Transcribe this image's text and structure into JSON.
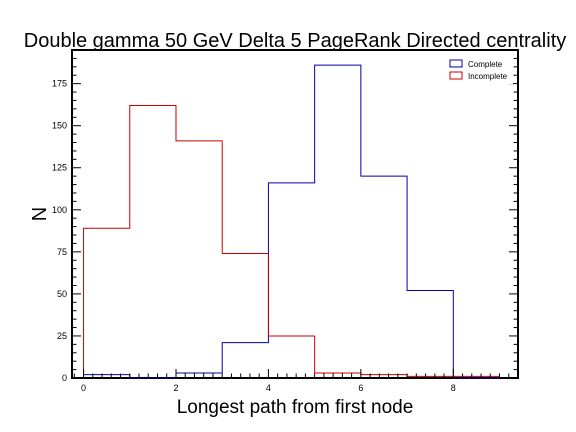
{
  "chart_data": {
    "type": "histogram",
    "title": "Double gamma 50 GeV Delta 5 PageRank Directed centrality",
    "xlabel": "Longest path from first node",
    "ylabel": "N",
    "xlim": [
      -0.25,
      9.4
    ],
    "ylim": [
      0,
      195
    ],
    "x_ticks": [
      0,
      2,
      4,
      6,
      8
    ],
    "y_ticks": [
      0,
      25,
      50,
      75,
      100,
      125,
      150,
      175
    ],
    "bin_edges": [
      0,
      1,
      2,
      3,
      4,
      5,
      6,
      7,
      8,
      9
    ],
    "series": [
      {
        "name": "Complete",
        "color": "#0000aa",
        "values": [
          2,
          0,
          3,
          21,
          116,
          186,
          120,
          52,
          0
        ]
      },
      {
        "name": "Incomplete",
        "color": "#cc0000",
        "values": [
          89,
          162,
          141,
          74,
          25,
          3,
          2,
          1,
          1
        ]
      }
    ],
    "legend": "top-right",
    "grid": false
  }
}
